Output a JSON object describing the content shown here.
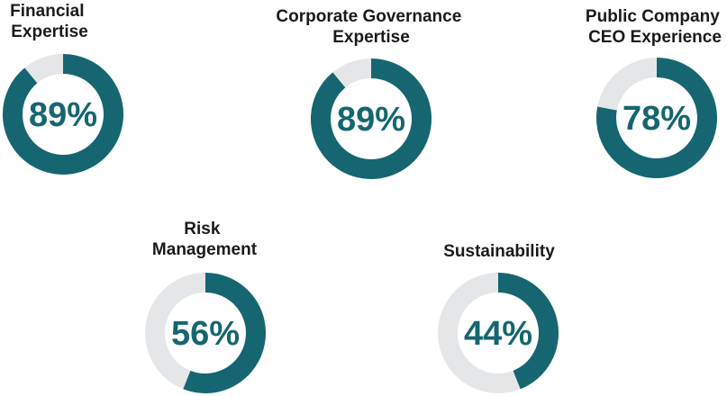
{
  "colors": {
    "filled": "#156670",
    "track": "#e5e6e8",
    "title": "#1a1a1a",
    "value": "#156670"
  },
  "chart_data": [
    {
      "type": "pie",
      "style": "donut",
      "title_lines": [
        "Financial",
        "Expertise"
      ],
      "value": 89,
      "value_label": "89%"
    },
    {
      "type": "pie",
      "style": "donut",
      "title_lines": [
        "Corporate Governance",
        "Expertise"
      ],
      "value": 89,
      "value_label": "89%"
    },
    {
      "type": "pie",
      "style": "donut",
      "title_lines": [
        "Public Company",
        "CEO Experience"
      ],
      "value": 78,
      "value_label": "78%"
    },
    {
      "type": "pie",
      "style": "donut",
      "title_lines": [
        "Risk",
        "Management"
      ],
      "value": 56,
      "value_label": "56%"
    },
    {
      "type": "pie",
      "style": "donut",
      "title_lines": [
        "Sustainability"
      ],
      "value": 44,
      "value_label": "44%"
    }
  ]
}
